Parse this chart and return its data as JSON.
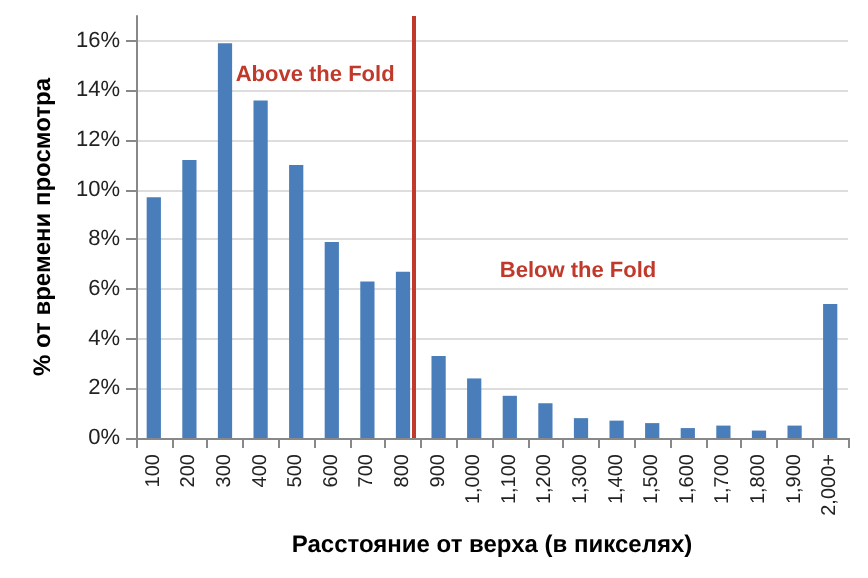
{
  "chart_data": {
    "type": "bar",
    "xlabel": "Расстояние от верха (в пикселях)",
    "ylabel": "% от времени просмотра",
    "categories": [
      "100",
      "200",
      "300",
      "400",
      "500",
      "600",
      "700",
      "800",
      "900",
      "1,000",
      "1,100",
      "1,200",
      "1,300",
      "1,400",
      "1,500",
      "1,600",
      "1,700",
      "1,800",
      "1,900",
      "2,000+"
    ],
    "values": [
      9.7,
      11.2,
      15.9,
      13.6,
      11.0,
      7.9,
      6.3,
      6.7,
      3.3,
      2.4,
      1.7,
      1.4,
      0.8,
      0.7,
      0.6,
      0.4,
      0.5,
      0.3,
      0.5,
      5.4
    ],
    "color": "#4a7ebb",
    "ylim": [
      0,
      17
    ],
    "yticks": [
      {
        "value": 0,
        "label": "0%"
      },
      {
        "value": 2,
        "label": "2%"
      },
      {
        "value": 4,
        "label": "4%"
      },
      {
        "value": 6,
        "label": "6%"
      },
      {
        "value": 8,
        "label": "8%"
      },
      {
        "value": 10,
        "label": "10%"
      },
      {
        "value": 12,
        "label": "12%"
      },
      {
        "value": 14,
        "label": "14%"
      },
      {
        "value": 16,
        "label": "16%"
      }
    ],
    "grid": "y",
    "ref_lines": [
      {
        "axis": "x",
        "value": "800",
        "color": "#c0392b"
      }
    ],
    "annotations": [
      "Above the Fold",
      "Below the Fold"
    ]
  }
}
